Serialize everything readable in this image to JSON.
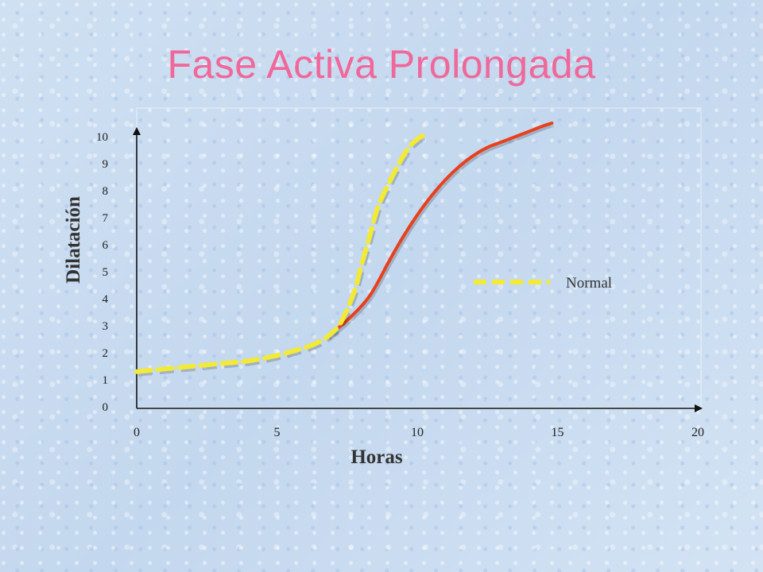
{
  "page": {
    "title": "Fase Activa Prolongada"
  },
  "chart_data": {
    "type": "line",
    "title": "Fase Activa Prolongada",
    "xlabel": "Horas",
    "ylabel": "Dilatación",
    "xlim": [
      0,
      20
    ],
    "ylim": [
      0,
      10
    ],
    "x_ticks": [
      "0",
      "5",
      "10",
      "15",
      "20"
    ],
    "y_ticks": [
      "0",
      "1",
      "2",
      "3",
      "4",
      "5",
      "6",
      "7",
      "8",
      "9",
      "10"
    ],
    "grid": false,
    "legend_position": "right",
    "series": [
      {
        "name": "Normal",
        "style": "dashed",
        "color": "#f2ea35",
        "x": [
          0.0,
          1.0,
          2.0,
          3.0,
          4.0,
          5.0,
          5.7,
          6.3,
          6.8,
          7.2,
          7.5,
          7.8,
          8.0,
          8.3,
          8.6,
          9.0,
          9.4,
          9.7,
          10.0,
          10.3
        ],
        "y": [
          1.3,
          1.4,
          1.5,
          1.6,
          1.7,
          1.9,
          2.1,
          2.3,
          2.6,
          3.0,
          3.6,
          4.4,
          5.2,
          6.3,
          7.4,
          8.3,
          9.1,
          9.6,
          9.9,
          10.1
        ]
      },
      {
        "name": "",
        "style": "solid",
        "color": "#e8401c",
        "x": [
          6.8,
          7.5,
          8.3,
          9.0,
          9.5,
          10.0,
          10.5,
          11.0,
          11.5,
          12.0,
          12.5,
          13.0,
          13.5,
          14.0,
          14.5,
          14.8
        ],
        "y": [
          2.6,
          3.2,
          4.1,
          5.4,
          6.3,
          7.1,
          7.8,
          8.4,
          8.9,
          9.3,
          9.6,
          9.8,
          10.0,
          10.2,
          10.4,
          10.5
        ]
      }
    ]
  }
}
